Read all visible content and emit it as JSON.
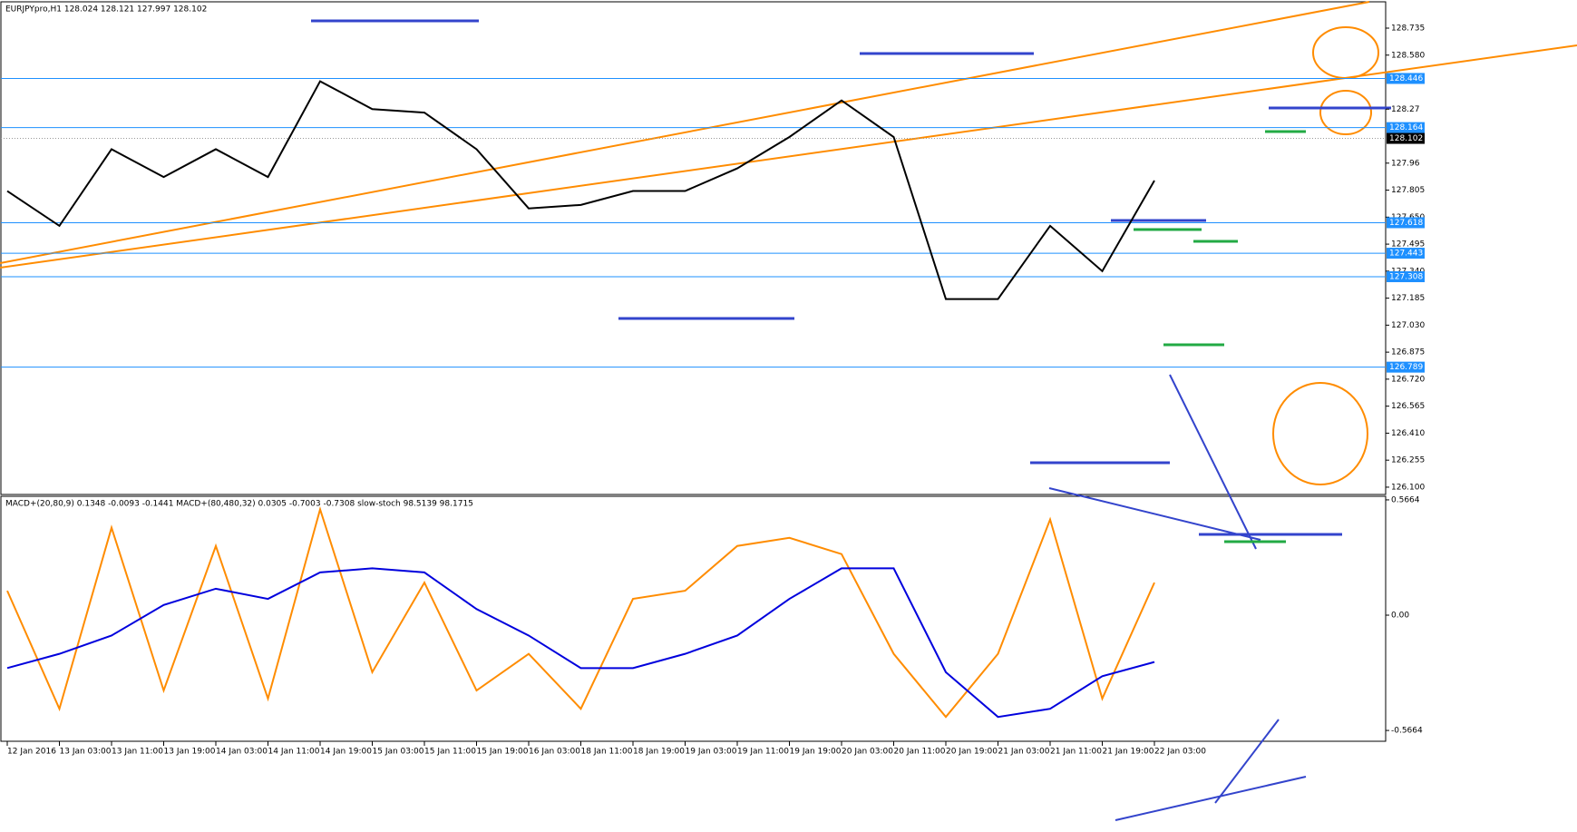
{
  "chart_data": [
    {
      "type": "line",
      "title": "EURJPYpro,H1  128.024 128.121 127.997 128.102",
      "categories": [
        "12 Jan 2016",
        "13 Jan 03:00",
        "13 Jan 11:00",
        "13 Jan 19:00",
        "14 Jan 03:00",
        "14 Jan 11:00",
        "14 Jan 19:00",
        "15 Jan 03:00",
        "15 Jan 11:00",
        "15 Jan 19:00",
        "16 Jan 03:00",
        "18 Jan 11:00",
        "18 Jan 19:00",
        "19 Jan 03:00",
        "19 Jan 11:00",
        "19 Jan 19:00",
        "20 Jan 03:00",
        "20 Jan 11:00",
        "20 Jan 19:00",
        "21 Jan 03:00",
        "21 Jan 11:00",
        "21 Jan 19:00",
        "22 Jan 03:00"
      ],
      "series": [
        {
          "color": "#000000",
          "values": [
            127.8,
            127.6,
            128.04,
            127.88,
            128.04,
            127.88,
            128.43,
            128.27,
            128.25,
            128.04,
            127.7,
            127.72,
            127.8,
            127.8,
            127.93,
            128.11,
            128.32,
            128.11,
            127.18,
            127.18,
            127.6,
            127.34,
            127.86
          ]
        }
      ],
      "ylim": [
        126.058,
        128.886
      ],
      "yticks": [
        128.735,
        {
          "value": 128.58,
          "label": "128.580"
        },
        128.27,
        127.96,
        127.805,
        {
          "value": 127.65,
          "label": "127.650"
        },
        127.495,
        {
          "value": 127.34,
          "label": "127.340"
        },
        127.185,
        {
          "value": 127.03,
          "label": "127.030"
        },
        126.875,
        {
          "value": 126.72,
          "label": "126.720"
        },
        126.565,
        {
          "value": 126.41,
          "label": "126.410"
        },
        126.255,
        {
          "value": 126.1,
          "label": "126.100"
        }
      ],
      "levels": [
        128.446,
        128.164,
        127.618,
        127.443,
        127.308,
        126.789
      ],
      "level_color": "#1e90ff",
      "last_price": 128.102
    },
    {
      "type": "line",
      "title": "MACD+(20,80,9) 0.1348 -0.0093 -0.1441  MACD+(80,480,32) 0.0305 -0.7003 -0.7308  slow-stoch 98.5139 98.1715",
      "series": [
        {
          "color": "#ff8c00",
          "values": [
            0.12,
            -0.46,
            0.43,
            -0.37,
            0.34,
            -0.41,
            0.52,
            -0.28,
            0.16,
            -0.37,
            -0.19,
            -0.46,
            0.08,
            0.12,
            0.34,
            0.38,
            0.3,
            -0.19,
            -0.5,
            -0.19,
            0.47,
            -0.41,
            0.16
          ]
        },
        {
          "color": "#0000dd",
          "values": [
            -0.26,
            -0.19,
            -0.1,
            0.05,
            0.13,
            0.08,
            0.21,
            0.23,
            0.21,
            0.03,
            -0.1,
            -0.26,
            -0.26,
            -0.19,
            -0.1,
            0.08,
            0.23,
            0.23,
            -0.28,
            -0.5,
            -0.46,
            -0.3,
            -0.23
          ]
        }
      ],
      "ylim": [
        -0.6195,
        0.584
      ],
      "yticks": [
        0.5664,
        {
          "value": 0,
          "label": "0.00"
        },
        -0.5664
      ]
    }
  ]
}
